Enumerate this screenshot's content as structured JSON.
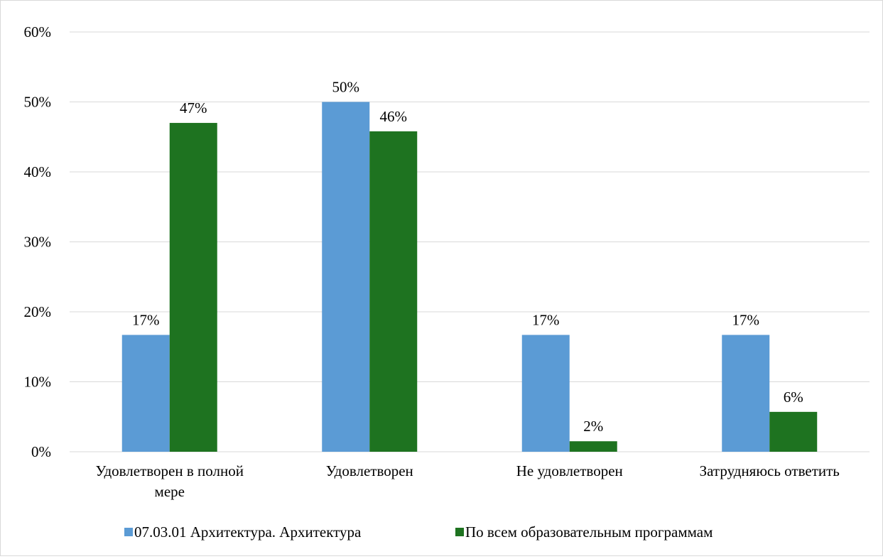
{
  "chart_data": {
    "type": "bar",
    "title": "",
    "xlabel": "",
    "ylabel": "",
    "ylim": [
      0,
      0.6
    ],
    "yticks": [
      "0%",
      "10%",
      "20%",
      "30%",
      "40%",
      "50%",
      "60%"
    ],
    "grid": true,
    "legend_position": "bottom",
    "categories": [
      [
        "Удовлетворен в полной",
        "мере"
      ],
      [
        "Удовлетворен"
      ],
      [
        "Не удовлетворен"
      ],
      [
        "Затрудняюсь ответить"
      ]
    ],
    "series": [
      {
        "name": "07.03.01 Архитектура. Архитектура",
        "color": "#5b9bd5",
        "values": [
          0.167,
          0.5,
          0.167,
          0.167
        ],
        "labels": [
          "17%",
          "50%",
          "17%",
          "17%"
        ]
      },
      {
        "name": "По всем образовательным программам",
        "color": "#1e7320",
        "values": [
          0.47,
          0.458,
          0.015,
          0.057
        ],
        "labels": [
          "47%",
          "46%",
          "2%",
          "6%"
        ]
      }
    ]
  }
}
